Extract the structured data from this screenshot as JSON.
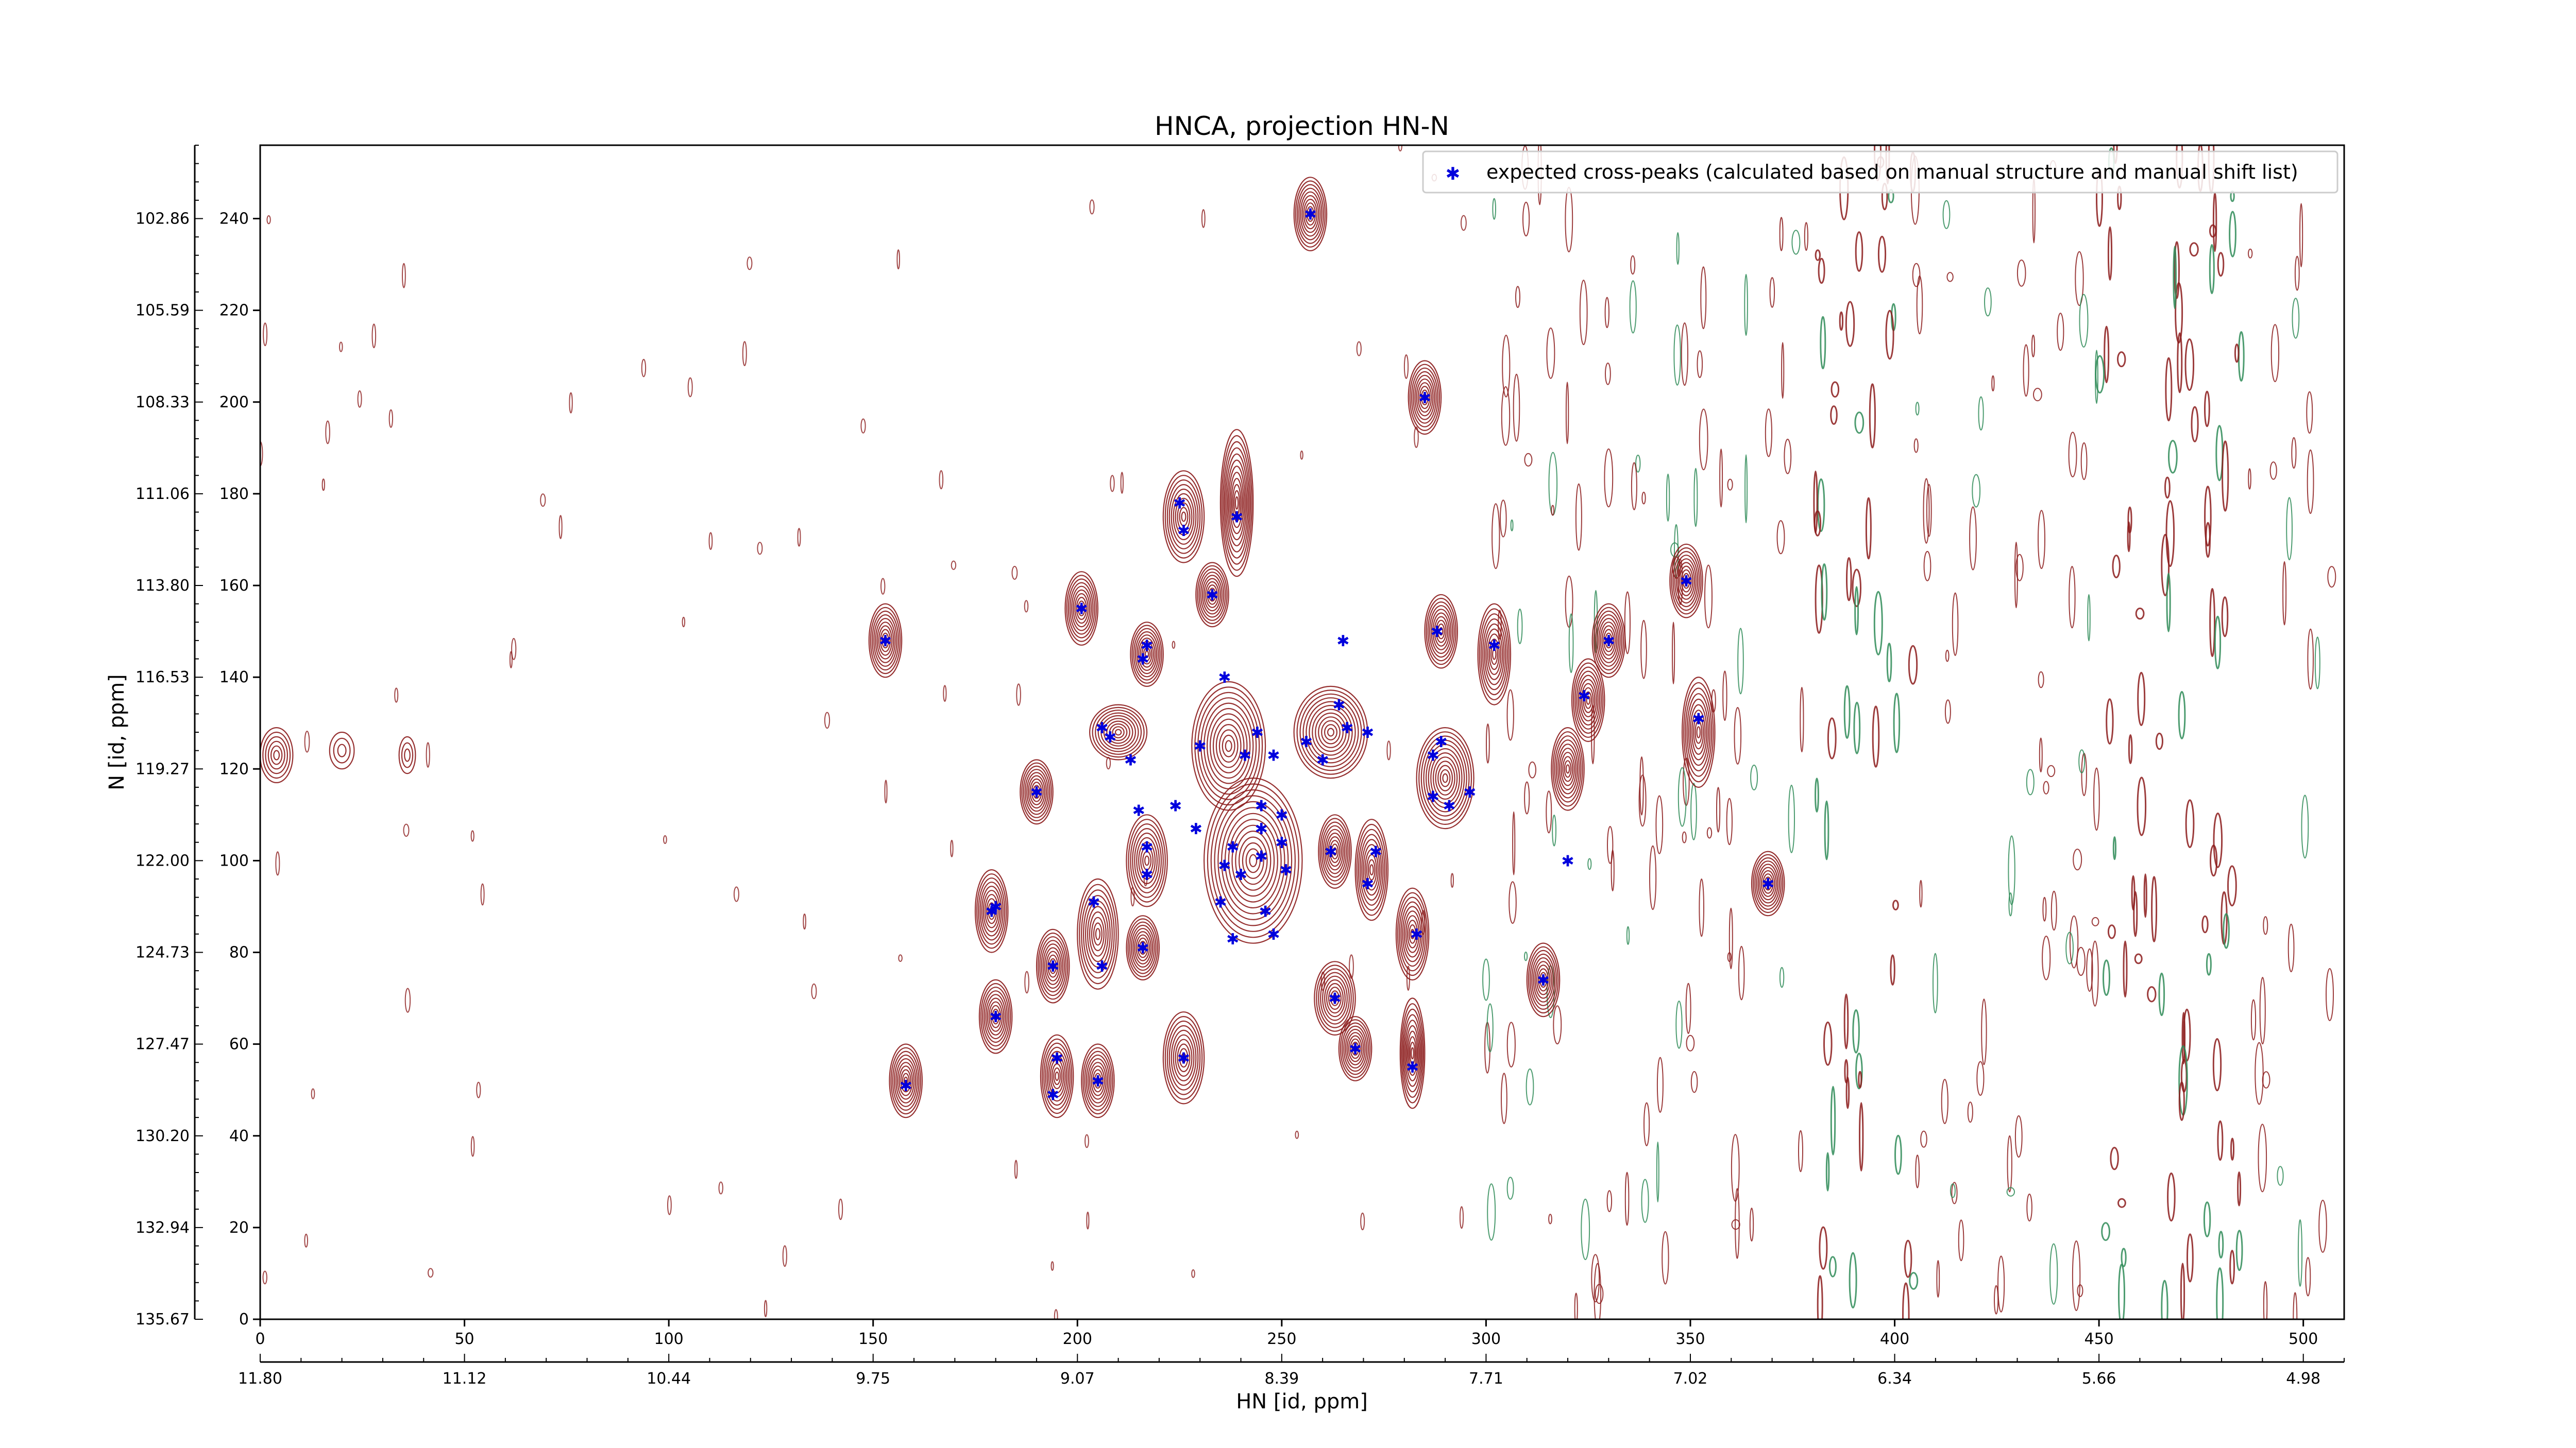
{
  "chart_data": {
    "type": "scatter",
    "title": "HNCA, projection HN-N",
    "xlabel": "HN [id, ppm]",
    "ylabel": "N [id, ppm]",
    "xlim": [
      0,
      510
    ],
    "ylim": [
      0,
      256
    ],
    "x_ticks": [
      0,
      50,
      100,
      150,
      200,
      250,
      300,
      350,
      400,
      450,
      500
    ],
    "y_ticks": [
      0,
      20,
      40,
      60,
      80,
      100,
      120,
      140,
      160,
      180,
      200,
      220,
      240
    ],
    "secondary_x_ticks": [
      {
        "pos": 0,
        "label": "11.80"
      },
      {
        "pos": 50,
        "label": "11.12"
      },
      {
        "pos": 100,
        "label": "10.44"
      },
      {
        "pos": 150,
        "label": "9.75"
      },
      {
        "pos": 200,
        "label": "9.07"
      },
      {
        "pos": 250,
        "label": "8.39"
      },
      {
        "pos": 300,
        "label": "7.71"
      },
      {
        "pos": 350,
        "label": "7.02"
      },
      {
        "pos": 400,
        "label": "6.34"
      },
      {
        "pos": 450,
        "label": "5.66"
      },
      {
        "pos": 500,
        "label": "4.98"
      }
    ],
    "secondary_y_ticks": [
      {
        "pos": 0,
        "label": "135.67"
      },
      {
        "pos": 20,
        "label": "132.94"
      },
      {
        "pos": 40,
        "label": "130.20"
      },
      {
        "pos": 60,
        "label": "127.47"
      },
      {
        "pos": 80,
        "label": "124.73"
      },
      {
        "pos": 100,
        "label": "122.00"
      },
      {
        "pos": 120,
        "label": "119.27"
      },
      {
        "pos": 140,
        "label": "116.53"
      },
      {
        "pos": 160,
        "label": "113.80"
      },
      {
        "pos": 180,
        "label": "111.06"
      },
      {
        "pos": 200,
        "label": "108.33"
      },
      {
        "pos": 220,
        "label": "105.59"
      },
      {
        "pos": 240,
        "label": "102.86"
      }
    ],
    "legend_position": "top-right",
    "colors": {
      "peaks": "#0000dd",
      "contour_pos": "#8b1a1a",
      "contour_neg": "#2e8b57"
    },
    "series": [
      {
        "name": "expected cross-peaks (calculated based on manual structure and manual shift list)",
        "points": [
          [
            257,
            241
          ],
          [
            285,
            201
          ],
          [
            225,
            178
          ],
          [
            239,
            175
          ],
          [
            226,
            172
          ],
          [
            233,
            158
          ],
          [
            349,
            161
          ],
          [
            201,
            155
          ],
          [
            153,
            148
          ],
          [
            217,
            147
          ],
          [
            216,
            144
          ],
          [
            236,
            140
          ],
          [
            288,
            150
          ],
          [
            302,
            147
          ],
          [
            330,
            148
          ],
          [
            265,
            148
          ],
          [
            264,
            134
          ],
          [
            324,
            136
          ],
          [
            352,
            131
          ],
          [
            206,
            129
          ],
          [
            208,
            127
          ],
          [
            244,
            128
          ],
          [
            256,
            126
          ],
          [
            266,
            129
          ],
          [
            271,
            128
          ],
          [
            230,
            125
          ],
          [
            213,
            122
          ],
          [
            241,
            123
          ],
          [
            248,
            123
          ],
          [
            260,
            122
          ],
          [
            289,
            126
          ],
          [
            287,
            123
          ],
          [
            190,
            115
          ],
          [
            215,
            111
          ],
          [
            224,
            112
          ],
          [
            245,
            112
          ],
          [
            250,
            110
          ],
          [
            287,
            114
          ],
          [
            291,
            112
          ],
          [
            296,
            115
          ],
          [
            229,
            107
          ],
          [
            245,
            107
          ],
          [
            217,
            103
          ],
          [
            238,
            103
          ],
          [
            245,
            101
          ],
          [
            250,
            104
          ],
          [
            262,
            102
          ],
          [
            273,
            102
          ],
          [
            236,
            99
          ],
          [
            251,
            98
          ],
          [
            217,
            97
          ],
          [
            240,
            97
          ],
          [
            271,
            95
          ],
          [
            369,
            95
          ],
          [
            320,
            100
          ],
          [
            235,
            91
          ],
          [
            246,
            89
          ],
          [
            179,
            89
          ],
          [
            180,
            90
          ],
          [
            204,
            91
          ],
          [
            238,
            83
          ],
          [
            248,
            84
          ],
          [
            216,
            81
          ],
          [
            283,
            84
          ],
          [
            194,
            77
          ],
          [
            206,
            77
          ],
          [
            314,
            74
          ],
          [
            263,
            70
          ],
          [
            180,
            66
          ],
          [
            268,
            59
          ],
          [
            226,
            57
          ],
          [
            195,
            57
          ],
          [
            282,
            55
          ],
          [
            158,
            51
          ],
          [
            194,
            49
          ],
          [
            205,
            52
          ]
        ]
      }
    ],
    "contours": [
      {
        "x": 4,
        "y": 123,
        "rx": 4,
        "ry": 6,
        "levels": 6
      },
      {
        "x": 20,
        "y": 124,
        "rx": 3,
        "ry": 4,
        "levels": 3
      },
      {
        "x": 36,
        "y": 123,
        "rx": 2,
        "ry": 4,
        "levels": 3
      },
      {
        "x": 153,
        "y": 148,
        "rx": 4,
        "ry": 8,
        "levels": 10
      },
      {
        "x": 158,
        "y": 52,
        "rx": 4,
        "ry": 8,
        "levels": 10
      },
      {
        "x": 179,
        "y": 89,
        "rx": 4,
        "ry": 9,
        "levels": 10
      },
      {
        "x": 180,
        "y": 66,
        "rx": 4,
        "ry": 8,
        "levels": 10
      },
      {
        "x": 190,
        "y": 115,
        "rx": 4,
        "ry": 7,
        "levels": 10
      },
      {
        "x": 194,
        "y": 77,
        "rx": 4,
        "ry": 8,
        "levels": 10
      },
      {
        "x": 195,
        "y": 53,
        "rx": 4,
        "ry": 9,
        "levels": 10
      },
      {
        "x": 201,
        "y": 155,
        "rx": 4,
        "ry": 8,
        "levels": 10
      },
      {
        "x": 205,
        "y": 52,
        "rx": 4,
        "ry": 8,
        "levels": 10
      },
      {
        "x": 205,
        "y": 84,
        "rx": 5,
        "ry": 12,
        "levels": 10
      },
      {
        "x": 210,
        "y": 128,
        "rx": 7,
        "ry": 6,
        "levels": 10
      },
      {
        "x": 217,
        "y": 145,
        "rx": 4,
        "ry": 7,
        "levels": 10
      },
      {
        "x": 217,
        "y": 100,
        "rx": 5,
        "ry": 10,
        "levels": 10
      },
      {
        "x": 216,
        "y": 81,
        "rx": 4,
        "ry": 7,
        "levels": 10
      },
      {
        "x": 226,
        "y": 175,
        "rx": 5,
        "ry": 10,
        "levels": 10
      },
      {
        "x": 226,
        "y": 57,
        "rx": 5,
        "ry": 10,
        "levels": 10
      },
      {
        "x": 233,
        "y": 158,
        "rx": 4,
        "ry": 7,
        "levels": 10
      },
      {
        "x": 239,
        "y": 178,
        "rx": 4,
        "ry": 16,
        "levels": 12
      },
      {
        "x": 237,
        "y": 125,
        "rx": 9,
        "ry": 14,
        "levels": 12
      },
      {
        "x": 243,
        "y": 100,
        "rx": 12,
        "ry": 18,
        "levels": 14
      },
      {
        "x": 257,
        "y": 241,
        "rx": 4,
        "ry": 8,
        "levels": 10
      },
      {
        "x": 262,
        "y": 128,
        "rx": 9,
        "ry": 10,
        "levels": 12
      },
      {
        "x": 263,
        "y": 102,
        "rx": 4,
        "ry": 8,
        "levels": 10
      },
      {
        "x": 263,
        "y": 70,
        "rx": 5,
        "ry": 8,
        "levels": 10
      },
      {
        "x": 268,
        "y": 59,
        "rx": 4,
        "ry": 7,
        "levels": 10
      },
      {
        "x": 272,
        "y": 98,
        "rx": 4,
        "ry": 11,
        "levels": 10
      },
      {
        "x": 282,
        "y": 84,
        "rx": 4,
        "ry": 10,
        "levels": 10
      },
      {
        "x": 282,
        "y": 58,
        "rx": 3,
        "ry": 12,
        "levels": 10
      },
      {
        "x": 285,
        "y": 201,
        "rx": 4,
        "ry": 8,
        "levels": 10
      },
      {
        "x": 289,
        "y": 150,
        "rx": 4,
        "ry": 8,
        "levels": 10
      },
      {
        "x": 290,
        "y": 118,
        "rx": 7,
        "ry": 11,
        "levels": 12
      },
      {
        "x": 302,
        "y": 145,
        "rx": 4,
        "ry": 11,
        "levels": 10
      },
      {
        "x": 314,
        "y": 74,
        "rx": 4,
        "ry": 8,
        "levels": 10
      },
      {
        "x": 320,
        "y": 120,
        "rx": 4,
        "ry": 9,
        "levels": 10
      },
      {
        "x": 325,
        "y": 135,
        "rx": 4,
        "ry": 9,
        "levels": 10
      },
      {
        "x": 330,
        "y": 148,
        "rx": 4,
        "ry": 8,
        "levels": 10
      },
      {
        "x": 349,
        "y": 161,
        "rx": 4,
        "ry": 8,
        "levels": 10
      },
      {
        "x": 352,
        "y": 128,
        "rx": 4,
        "ry": 12,
        "levels": 10
      },
      {
        "x": 369,
        "y": 95,
        "rx": 4,
        "ry": 7,
        "levels": 10
      }
    ]
  }
}
